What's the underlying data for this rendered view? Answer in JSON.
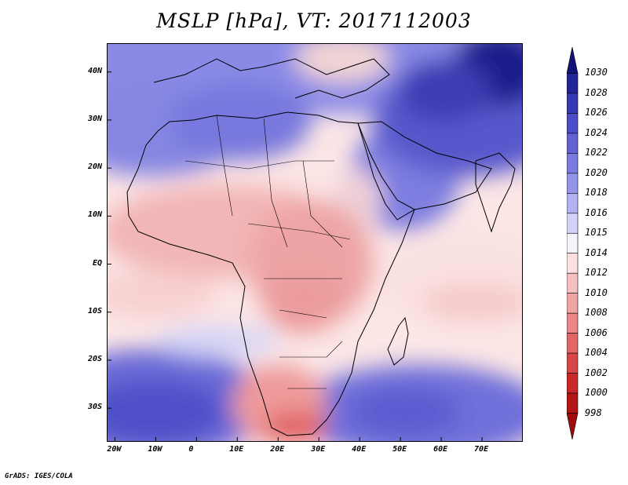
{
  "title": "MSLP [hPa], VT: 2017112003",
  "credit": "GrADS: IGES/COLA",
  "map": {
    "region": "Africa",
    "lon_range": [
      -22,
      80
    ],
    "lat_range": [
      -37,
      46
    ],
    "lon_ticks": [
      {
        "value": -20,
        "label": "20W"
      },
      {
        "value": -10,
        "label": "10W"
      },
      {
        "value": 0,
        "label": "0"
      },
      {
        "value": 10,
        "label": "10E"
      },
      {
        "value": 20,
        "label": "20E"
      },
      {
        "value": 30,
        "label": "30E"
      },
      {
        "value": 40,
        "label": "40E"
      },
      {
        "value": 50,
        "label": "50E"
      },
      {
        "value": 60,
        "label": "60E"
      },
      {
        "value": 70,
        "label": "70E"
      }
    ],
    "lat_ticks": [
      {
        "value": 40,
        "label": "40N"
      },
      {
        "value": 30,
        "label": "30N"
      },
      {
        "value": 20,
        "label": "20N"
      },
      {
        "value": 10,
        "label": "10N"
      },
      {
        "value": 0,
        "label": "EQ"
      },
      {
        "value": -10,
        "label": "10S"
      },
      {
        "value": -20,
        "label": "20S"
      },
      {
        "value": -30,
        "label": "30S"
      }
    ],
    "pressure_features": [
      {
        "name": "southern-atlantic-high",
        "lon": -10,
        "lat": -28,
        "hpa": 1022
      },
      {
        "name": "indian-ocean-high",
        "lon": 60,
        "lat": -30,
        "hpa": 1022
      },
      {
        "name": "central-asia-high",
        "lon": 75,
        "lat": 43,
        "hpa": 1030
      },
      {
        "name": "sahara-high",
        "lon": 0,
        "lat": 32,
        "hpa": 1020
      },
      {
        "name": "arabia-high",
        "lon": 48,
        "lat": 25,
        "hpa": 1020
      },
      {
        "name": "southern-africa-low",
        "lon": 22,
        "lat": -33,
        "hpa": 1004
      },
      {
        "name": "east-africa-low",
        "lon": 32,
        "lat": 3,
        "hpa": 1008
      },
      {
        "name": "sahel-low",
        "lon": 10,
        "lat": 12,
        "hpa": 1009
      },
      {
        "name": "aegean-low",
        "lon": 25,
        "lat": 39,
        "hpa": 1010
      }
    ]
  },
  "colorbar": {
    "labels": [
      "1030",
      "1028",
      "1026",
      "1024",
      "1022",
      "1020",
      "1018",
      "1016",
      "1015",
      "1014",
      "1012",
      "1010",
      "1008",
      "1006",
      "1004",
      "1002",
      "1000",
      "998"
    ],
    "colors": [
      "#141478",
      "#24249a",
      "#3838b4",
      "#4c4cc6",
      "#6262d4",
      "#7a7ae0",
      "#9494e8",
      "#b2b2f0",
      "#d2d2f8",
      "#f4f4fc",
      "#fce0e0",
      "#f6c0c0",
      "#f0a4a4",
      "#ea8686",
      "#e26666",
      "#d84646",
      "#c82828",
      "#b41616",
      "#a00c0c"
    ]
  }
}
